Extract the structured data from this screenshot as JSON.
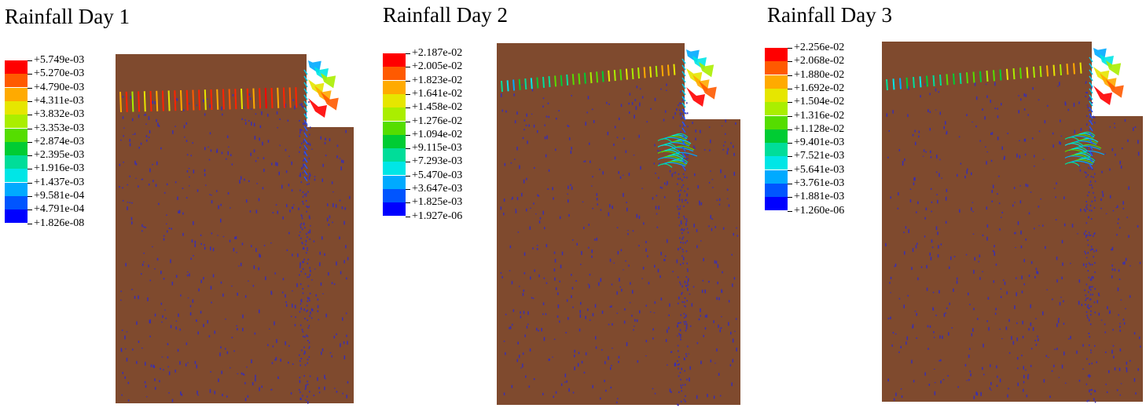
{
  "panels": [
    {
      "title": "Rainfall Day 1",
      "legend": {
        "colors": [
          "#ff0000",
          "#ff5a00",
          "#ffaa00",
          "#e6e600",
          "#aaee00",
          "#55dd00",
          "#00cc33",
          "#00dd99",
          "#00e6e6",
          "#00aaff",
          "#0055ff",
          "#0000ff"
        ],
        "labels": [
          "+5.749e-03",
          "+5.270e-03",
          "+4.790e-03",
          "+4.311e-03",
          "+3.832e-03",
          "+3.353e-03",
          "+2.874e-03",
          "+2.395e-03",
          "+1.916e-03",
          "+1.437e-03",
          "+9.581e-04",
          "+4.791e-04",
          "+1.826e-08"
        ]
      }
    },
    {
      "title": "Rainfall Day 2",
      "legend": {
        "colors": [
          "#ff0000",
          "#ff5a00",
          "#ffaa00",
          "#e6e600",
          "#aaee00",
          "#55dd00",
          "#00cc33",
          "#00dd99",
          "#00e6e6",
          "#00aaff",
          "#0055ff",
          "#0000ff"
        ],
        "labels": [
          "+2.187e-02",
          "+2.005e-02",
          "+1.823e-02",
          "+1.641e-02",
          "+1.458e-02",
          "+1.276e-02",
          "+1.094e-02",
          "+9.115e-03",
          "+7.293e-03",
          "+5.470e-03",
          "+3.647e-03",
          "+1.825e-03",
          "+1.927e-06"
        ]
      }
    },
    {
      "title": "Rainfall Day 3",
      "legend": {
        "colors": [
          "#ff0000",
          "#ff5a00",
          "#ffaa00",
          "#e6e600",
          "#aaee00",
          "#55dd00",
          "#00cc33",
          "#00dd99",
          "#00e6e6",
          "#00aaff",
          "#0055ff",
          "#0000ff"
        ],
        "labels": [
          "+2.256e-02",
          "+2.068e-02",
          "+1.880e-02",
          "+1.692e-02",
          "+1.504e-02",
          "+1.316e-02",
          "+1.128e-02",
          "+9.401e-03",
          "+7.521e-03",
          "+5.641e-03",
          "+3.761e-03",
          "+1.881e-03",
          "+1.260e-06"
        ]
      }
    }
  ],
  "colors": {
    "soil": "#7f4a2e",
    "mesh_dots": "#3a2fb0"
  }
}
